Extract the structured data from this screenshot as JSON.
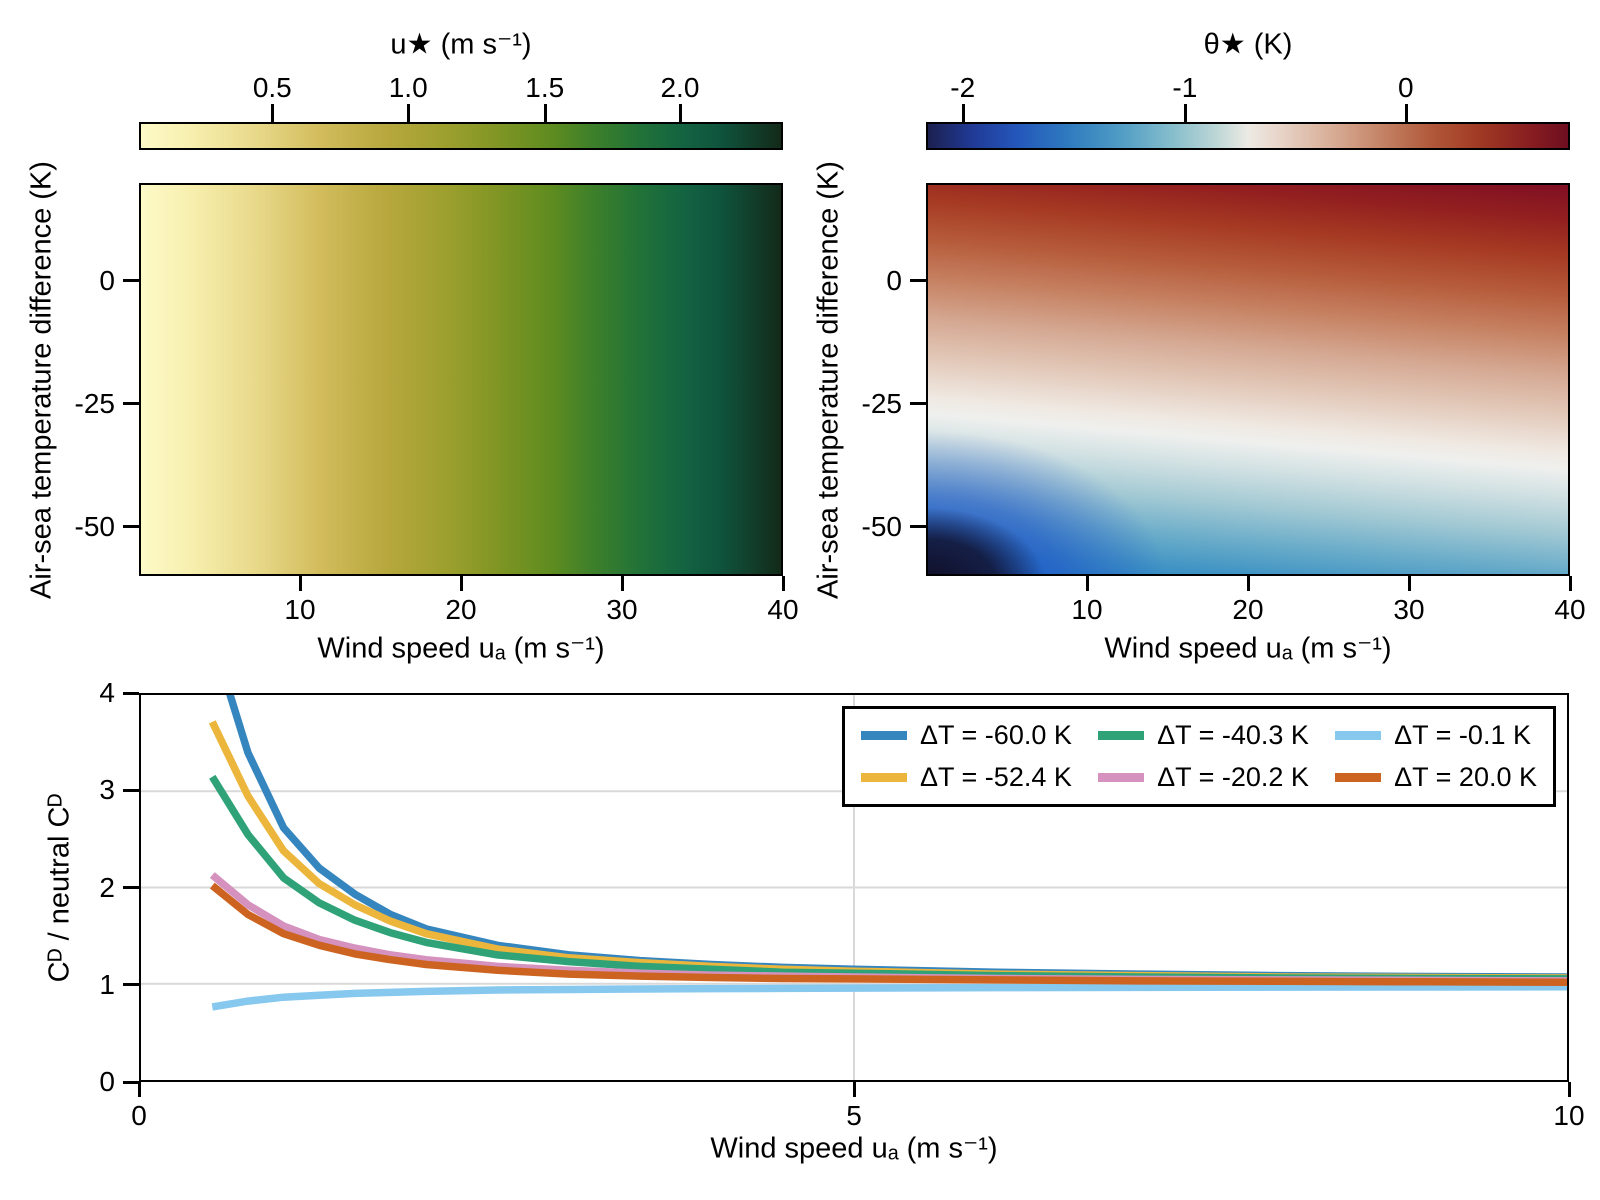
{
  "chart_data": [
    {
      "type": "heatmap",
      "id": "u-star",
      "title": "u★ (m s⁻¹)",
      "colorbar": {
        "range": [
          0.0,
          2.37
        ],
        "ticks": [
          {
            "label": "0.5",
            "pct": 20.7
          },
          {
            "label": "1.0",
            "pct": 41.8
          },
          {
            "label": "1.5",
            "pct": 63.0
          },
          {
            "label": "2.0",
            "pct": 84.0
          }
        ]
      },
      "colormap_stops": [
        [
          0,
          "#fdfac8"
        ],
        [
          8,
          "#f7efae"
        ],
        [
          18,
          "#e8d98a"
        ],
        [
          28,
          "#d2bc5c"
        ],
        [
          38,
          "#b8a83e"
        ],
        [
          48,
          "#9c9f2d"
        ],
        [
          56,
          "#7f9524"
        ],
        [
          64,
          "#5f8c20"
        ],
        [
          71,
          "#3c7f2b"
        ],
        [
          78,
          "#217238"
        ],
        [
          85,
          "#136342"
        ],
        [
          91,
          "#0f523c"
        ],
        [
          96,
          "#123c29"
        ],
        [
          100,
          "#132a19"
        ]
      ],
      "x": {
        "label": "Wind speed uₐ (m s⁻¹)",
        "range": [
          0,
          40
        ],
        "ticks": [
          {
            "label": "10",
            "pct": 25
          },
          {
            "label": "20",
            "pct": 50
          },
          {
            "label": "30",
            "pct": 75
          },
          {
            "label": "40",
            "pct": 100
          }
        ]
      },
      "y": {
        "label": "Air-sea temperature difference (K)",
        "range": [
          20,
          -60
        ],
        "ticks": [
          {
            "label": "0",
            "pct": 24.9
          },
          {
            "label": "-25",
            "pct": 56.2
          },
          {
            "label": "-50",
            "pct": 87.5
          }
        ]
      },
      "description": "Friction velocity u-star grows with wind speed: pale yellow near 0 m/s to near-black green (~2.4 m/s) at 40 m/s; nearly independent of air-sea temperature difference."
    },
    {
      "type": "heatmap",
      "id": "theta-star",
      "title": "θ★ (K)",
      "colorbar": {
        "range": [
          -2.17,
          0.74
        ],
        "ticks": [
          {
            "label": "-2",
            "pct": 5.7
          },
          {
            "label": "-1",
            "pct": 40.2
          },
          {
            "label": "0",
            "pct": 74.5
          }
        ]
      },
      "colormap_stops": [
        [
          0,
          "#1c2050"
        ],
        [
          7,
          "#203a96"
        ],
        [
          14,
          "#2457bb"
        ],
        [
          22,
          "#2f7bbf"
        ],
        [
          30,
          "#4f9cc5"
        ],
        [
          38,
          "#85bdcc"
        ],
        [
          45,
          "#bcd6d6"
        ],
        [
          50,
          "#eceae4"
        ],
        [
          55,
          "#e8d4c8"
        ],
        [
          63,
          "#d8ae97"
        ],
        [
          71,
          "#c48265"
        ],
        [
          79,
          "#b05738"
        ],
        [
          86,
          "#a13a24"
        ],
        [
          93,
          "#8c2121"
        ],
        [
          100,
          "#6e0e20"
        ]
      ],
      "heatmap_gradient": {
        "angle_deg": 185,
        "stops": [
          [
            0,
            "#7f0f24"
          ],
          [
            8,
            "#93201f"
          ],
          [
            16,
            "#a63a23"
          ],
          [
            25,
            "#b65c3b"
          ],
          [
            34,
            "#c68263"
          ],
          [
            43,
            "#d5a993"
          ],
          [
            52,
            "#e3cabb"
          ],
          [
            60,
            "#efe8e1"
          ],
          [
            64,
            "#eff0ee"
          ],
          [
            70,
            "#d2e1e3"
          ],
          [
            78,
            "#a4cad4"
          ],
          [
            87,
            "#68abc9"
          ],
          [
            94,
            "#3f93c4"
          ],
          [
            100,
            "#2d85c0"
          ]
        ],
        "corner_layers": [
          "radial-gradient(150px 95px at 0% 102%, rgba(17,14,35,0.98) 0%, rgba(17,14,35,0.78) 45%, rgba(17,14,35,0) 78%)",
          "radial-gradient(330px 210px at 0% 102%, rgba(24,74,200,0.92) 0%, rgba(24,74,200,0.55) 40%, rgba(24,74,200,0) 72%)"
        ]
      },
      "x": {
        "label": "Wind speed uₐ (m s⁻¹)",
        "range": [
          0,
          40
        ],
        "ticks": [
          {
            "label": "10",
            "pct": 25
          },
          {
            "label": "20",
            "pct": 50
          },
          {
            "label": "30",
            "pct": 75
          },
          {
            "label": "40",
            "pct": 100
          }
        ]
      },
      "y": {
        "label": "Air-sea temperature difference (K)",
        "range": [
          20,
          -60
        ],
        "ticks": [
          {
            "label": "0",
            "pct": 24.9
          },
          {
            "label": "-25",
            "pct": 56.2
          },
          {
            "label": "-50",
            "pct": 87.5
          }
        ]
      },
      "description": "Temperature scale theta-star: dark red (positive heating) for warm air aloft at top, white band near dT ≈ -20 to -32 K sloping down with wind speed, blue below; vivid blue and near-black patch at low wind and dT ≈ -60 K."
    },
    {
      "type": "line",
      "id": "cd-ratio",
      "x_label": "Wind speed uₐ (m s⁻¹)",
      "y_label": "Cᴰ / neutral Cᴰ",
      "x_range": [
        0,
        10
      ],
      "y_range": [
        0,
        4
      ],
      "x_ticks": [
        {
          "label": "0",
          "value": 0
        },
        {
          "label": "5",
          "value": 5
        },
        {
          "label": "10",
          "value": 10
        }
      ],
      "y_ticks": [
        {
          "label": "0",
          "value": 0
        },
        {
          "label": "1",
          "value": 1
        },
        {
          "label": "2",
          "value": 2
        },
        {
          "label": "3",
          "value": 3
        },
        {
          "label": "4",
          "value": 4
        }
      ],
      "gridlines": {
        "x": [
          5
        ],
        "y": [
          1,
          2,
          3
        ],
        "color": "#d9d9d9"
      },
      "x_values": [
        0.5,
        0.75,
        1,
        1.25,
        1.5,
        1.75,
        2,
        2.5,
        3,
        3.5,
        4,
        4.5,
        5,
        6,
        7,
        8,
        9,
        10
      ],
      "series": [
        {
          "name": "ΔT = -60.0 K",
          "color": "#3585bf",
          "values": [
            4.6,
            3.4,
            2.62,
            2.2,
            1.93,
            1.72,
            1.57,
            1.4,
            1.3,
            1.24,
            1.2,
            1.17,
            1.15,
            1.12,
            1.1,
            1.085,
            1.075,
            1.07
          ]
        },
        {
          "name": "ΔT = -52.4 K",
          "color": "#ecb63c",
          "values": [
            3.72,
            2.95,
            2.38,
            2.04,
            1.82,
            1.65,
            1.52,
            1.36,
            1.27,
            1.22,
            1.18,
            1.15,
            1.13,
            1.1,
            1.085,
            1.07,
            1.065,
            1.06
          ]
        },
        {
          "name": "ΔT = -40.3 K",
          "color": "#2fa377",
          "values": [
            3.15,
            2.55,
            2.1,
            1.84,
            1.66,
            1.53,
            1.43,
            1.3,
            1.23,
            1.18,
            1.15,
            1.12,
            1.11,
            1.085,
            1.07,
            1.06,
            1.055,
            1.05
          ]
        },
        {
          "name": "ΔT = -20.2 K",
          "color": "#d592bf",
          "values": [
            2.13,
            1.82,
            1.6,
            1.46,
            1.37,
            1.3,
            1.25,
            1.18,
            1.14,
            1.11,
            1.09,
            1.08,
            1.07,
            1.055,
            1.045,
            1.04,
            1.035,
            1.03
          ]
        },
        {
          "name": "ΔT = -0.1 K",
          "color": "#86c8ee",
          "values": [
            0.76,
            0.82,
            0.86,
            0.88,
            0.9,
            0.91,
            0.92,
            0.935,
            0.94,
            0.945,
            0.95,
            0.952,
            0.955,
            0.96,
            0.962,
            0.965,
            0.966,
            0.968
          ]
        },
        {
          "name": "ΔT = 20.0 K",
          "color": "#cd6321",
          "values": [
            2.02,
            1.72,
            1.52,
            1.4,
            1.31,
            1.25,
            1.2,
            1.14,
            1.1,
            1.08,
            1.065,
            1.055,
            1.05,
            1.04,
            1.03,
            1.025,
            1.02,
            1.015
          ]
        }
      ],
      "legend_position": "top-right"
    }
  ]
}
